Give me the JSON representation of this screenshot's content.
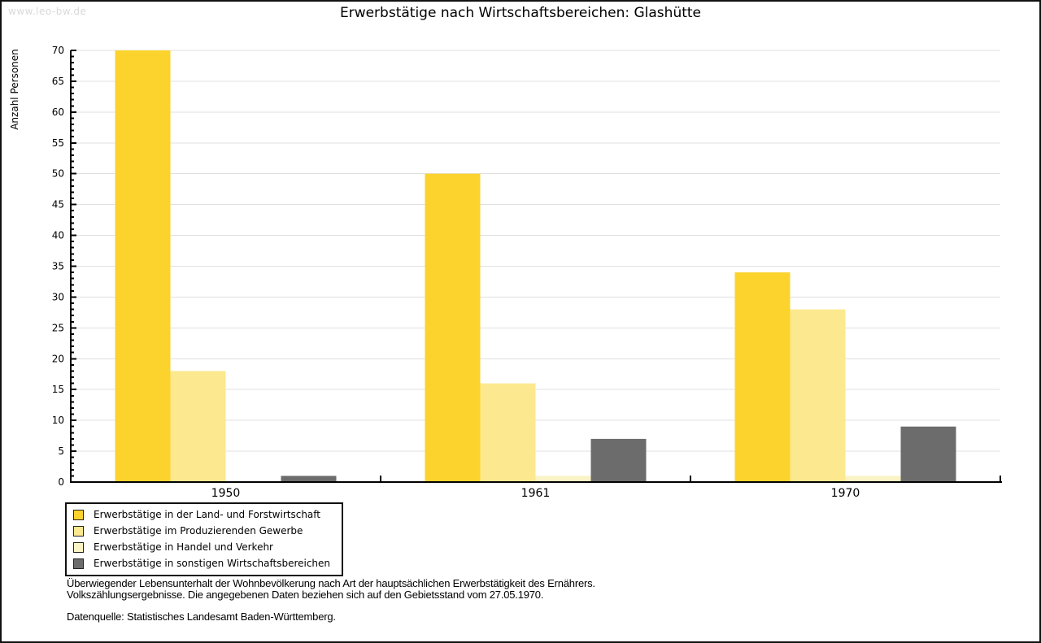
{
  "page": {
    "watermark": "www.leo-bw.de",
    "title": "Erwerbstätige nach Wirtschaftsbereichen: Glashütte"
  },
  "chart_data": {
    "type": "bar",
    "title": "Erwerbstätige nach Wirtschaftsbereichen: Glashütte",
    "xlabel": "",
    "ylabel": "Anzahl Personen",
    "ylim": [
      0,
      70
    ],
    "ytick_step": 5,
    "yminor_step": 1,
    "grid": true,
    "legend_position": "bottom-left",
    "categories": [
      "1950",
      "1961",
      "1970"
    ],
    "series": [
      {
        "name": "Erwerbstätige in der Land- und Forstwirtschaft",
        "color": "#FCD32D",
        "values": [
          70,
          50,
          34
        ]
      },
      {
        "name": "Erwerbstätige im Produzierenden Gewerbe",
        "color": "#FCE88E",
        "values": [
          18,
          16,
          28
        ]
      },
      {
        "name": "Erwerbstätige in Handel und Verkehr",
        "color": "#FAF3C5",
        "values": [
          0,
          1,
          1
        ]
      },
      {
        "name": "Erwerbstätige in sonstigen Wirtschaftsbereichen",
        "color": "#6C6C6C",
        "values": [
          1,
          7,
          9
        ]
      }
    ]
  },
  "footer": {
    "notes": [
      "Überwiegender Lebensunterhalt der Wohnbevölkerung nach Art der hauptsächlichen Erwerbstätigkeit des Ernährers.",
      "Volkszählungsergebnisse. Die angegebenen Daten beziehen sich auf den Gebietsstand vom 27.05.1970."
    ],
    "source": "Datenquelle: Statistisches Landesamt Baden-Württemberg."
  },
  "colors": {
    "grid": "#E0E0E0",
    "axis": "#000000",
    "watermark": "#D9D9D9"
  }
}
